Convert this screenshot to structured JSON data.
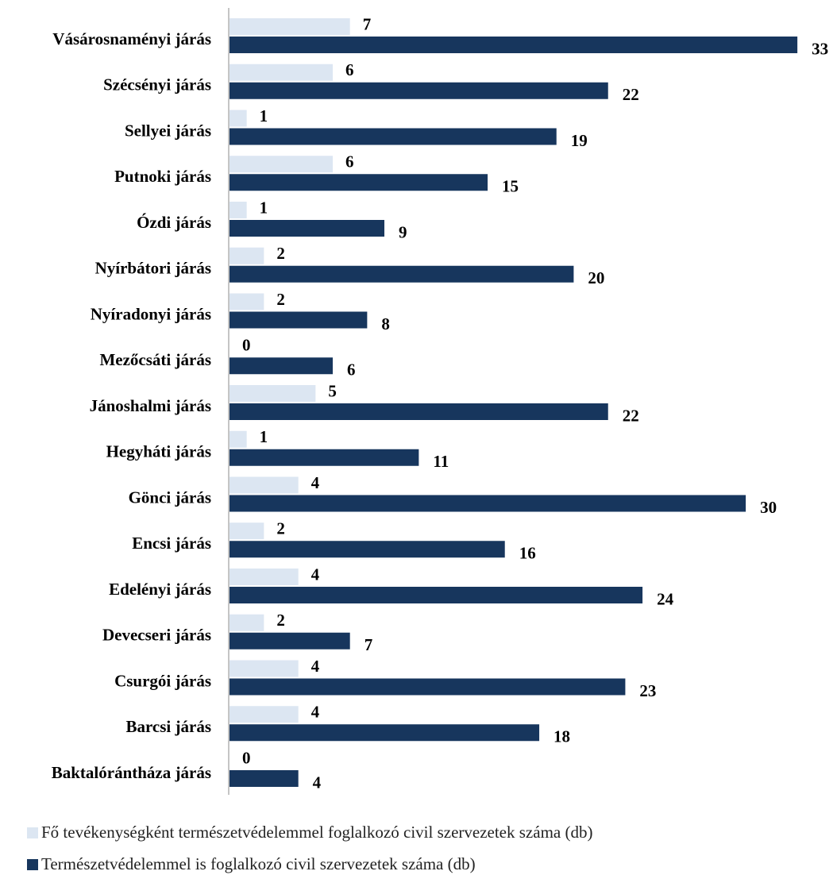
{
  "chart_data": {
    "type": "bar",
    "orientation": "horizontal",
    "title": "",
    "xlabel": "",
    "ylabel": "",
    "categories": [
      "Vásárosnaményi járás",
      "Szécsényi járás",
      "Sellyei járás",
      "Putnoki járás",
      "Ózdi járás",
      "Nyírbátori járás",
      "Nyíradonyi járás",
      "Mezőcsáti járás",
      "Jánoshalmi járás",
      "Hegyháti járás",
      "Gönci járás",
      "Encsi járás",
      "Edelényi járás",
      "Devecseri járás",
      "Csurgói járás",
      "Barcsi járás",
      "Baktalórántháza járás"
    ],
    "series": [
      {
        "name": "Fő tevékenységként természetvédelemmel foglalkozó civil szervezetek száma (db)",
        "color": "#dce6f2",
        "values": [
          7,
          6,
          1,
          6,
          1,
          2,
          2,
          0,
          5,
          1,
          4,
          2,
          4,
          2,
          4,
          4,
          0
        ]
      },
      {
        "name": "Természetvédelemmel is foglalkozó civil szervezetek száma (db)",
        "color": "#17365d",
        "values": [
          33,
          22,
          19,
          15,
          9,
          20,
          8,
          6,
          22,
          11,
          30,
          16,
          24,
          7,
          23,
          18,
          4
        ]
      }
    ],
    "xlim": [
      0,
      33
    ],
    "grid": false,
    "axis_line_color": "#a6a6a6",
    "legend_position": "bottom-left",
    "data_labels": true
  }
}
